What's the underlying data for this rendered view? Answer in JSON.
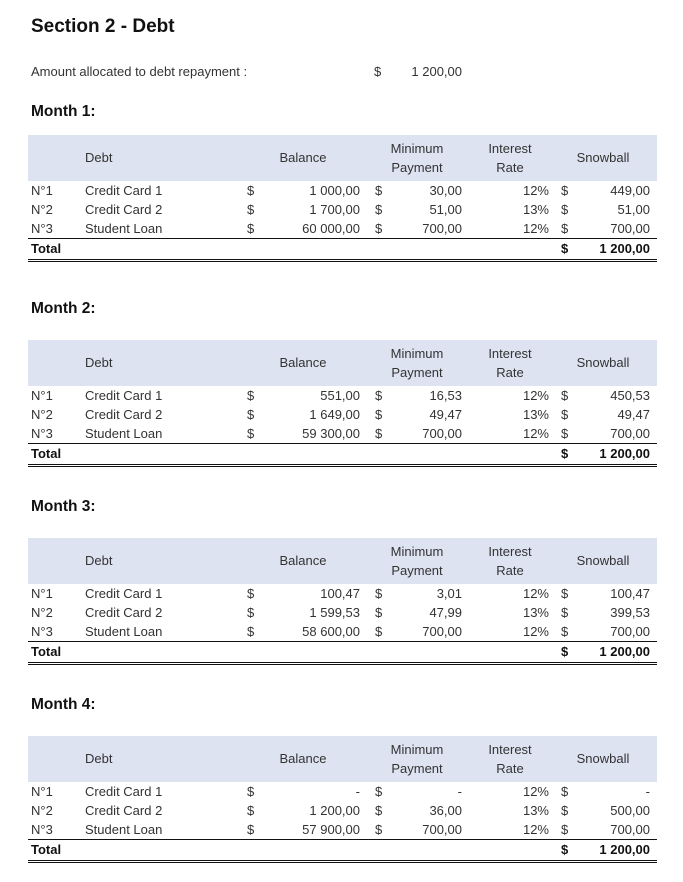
{
  "section": {
    "title": "Section 2 - Debt",
    "allocation_label": "Amount allocated to debt repayment :",
    "allocation_currency": "$",
    "allocation_value": "1 200,00"
  },
  "headers": {
    "no": "",
    "debt": "Debt",
    "balance": "Balance",
    "min_payment_1": "Minimum",
    "min_payment_2": "Payment",
    "interest_1": "Interest",
    "interest_2": "Rate",
    "snowball": "Snowball"
  },
  "currency": "$",
  "total_label": "Total",
  "months": [
    {
      "title": "Month 1:",
      "rows": [
        {
          "no": "N°1",
          "debt": "Credit Card 1",
          "balance": "1 000,00",
          "min_payment": "30,00",
          "rate": "12%",
          "snowball": "449,00"
        },
        {
          "no": "N°2",
          "debt": "Credit Card 2",
          "balance": "1 700,00",
          "min_payment": "51,00",
          "rate": "13%",
          "snowball": "51,00"
        },
        {
          "no": "N°3",
          "debt": "Student Loan",
          "balance": "60 000,00",
          "min_payment": "700,00",
          "rate": "12%",
          "snowball": "700,00"
        }
      ],
      "total": "1 200,00"
    },
    {
      "title": "Month 2:",
      "rows": [
        {
          "no": "N°1",
          "debt": "Credit Card 1",
          "balance": "551,00",
          "min_payment": "16,53",
          "rate": "12%",
          "snowball": "450,53"
        },
        {
          "no": "N°2",
          "debt": "Credit Card 2",
          "balance": "1 649,00",
          "min_payment": "49,47",
          "rate": "13%",
          "snowball": "49,47"
        },
        {
          "no": "N°3",
          "debt": "Student Loan",
          "balance": "59 300,00",
          "min_payment": "700,00",
          "rate": "12%",
          "snowball": "700,00"
        }
      ],
      "total": "1 200,00"
    },
    {
      "title": "Month 3:",
      "rows": [
        {
          "no": "N°1",
          "debt": "Credit Card 1",
          "balance": "100,47",
          "min_payment": "3,01",
          "rate": "12%",
          "snowball": "100,47"
        },
        {
          "no": "N°2",
          "debt": "Credit Card 2",
          "balance": "1 599,53",
          "min_payment": "47,99",
          "rate": "13%",
          "snowball": "399,53"
        },
        {
          "no": "N°3",
          "debt": "Student Loan",
          "balance": "58 600,00",
          "min_payment": "700,00",
          "rate": "12%",
          "snowball": "700,00"
        }
      ],
      "total": "1 200,00"
    },
    {
      "title": "Month 4:",
      "rows": [
        {
          "no": "N°1",
          "debt": "Credit Card 1",
          "balance": "-",
          "min_payment": "-",
          "rate": "12%",
          "snowball": "-"
        },
        {
          "no": "N°2",
          "debt": "Credit Card 2",
          "balance": "1 200,00",
          "min_payment": "36,00",
          "rate": "13%",
          "snowball": "500,00"
        },
        {
          "no": "N°3",
          "debt": "Student Loan",
          "balance": "57 900,00",
          "min_payment": "700,00",
          "rate": "12%",
          "snowball": "700,00"
        }
      ],
      "total": "1 200,00"
    }
  ],
  "colors": {
    "header_bg": "#dde3f1",
    "text": "#333333"
  }
}
